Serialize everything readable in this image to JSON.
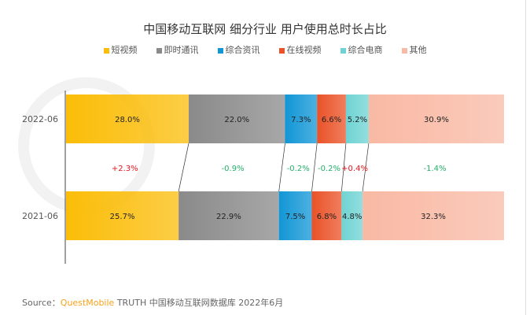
{
  "chart_data": {
    "type": "bar",
    "stacked": true,
    "orientation": "horizontal",
    "percent": true,
    "title": "中国移动互联网 细分行业 用户使用总时长占比",
    "categories": [
      "2022-06",
      "2021-06"
    ],
    "series": [
      {
        "name": "短视频",
        "values": [
          28.0,
          25.7
        ],
        "color": "#fbbd08",
        "change": "+2.3%"
      },
      {
        "name": "即时通讯",
        "values": [
          22.0,
          22.9
        ],
        "color": "#8a8a8a",
        "change": "-0.9%"
      },
      {
        "name": "综合资讯",
        "values": [
          7.3,
          7.5
        ],
        "color": "#1196d6",
        "change": "-0.2%"
      },
      {
        "name": "在线视频",
        "values": [
          6.6,
          6.8
        ],
        "color": "#ea5227",
        "change": "-0.2%"
      },
      {
        "name": "综合电商",
        "values": [
          5.2,
          4.8
        ],
        "color": "#6fd3d3",
        "change": "+0.4%"
      },
      {
        "name": "其他",
        "values": [
          30.9,
          32.3
        ],
        "color": "#f9b9a4",
        "change": "-1.4%"
      }
    ],
    "change_colors": {
      "positive": "#e8141c",
      "negative": "#22b06a"
    },
    "legend": "top"
  },
  "source": {
    "label": "Source：",
    "brand": "QuestMobile",
    "text": "TRUTH 中国移动互联网数据库 2022年6月"
  }
}
